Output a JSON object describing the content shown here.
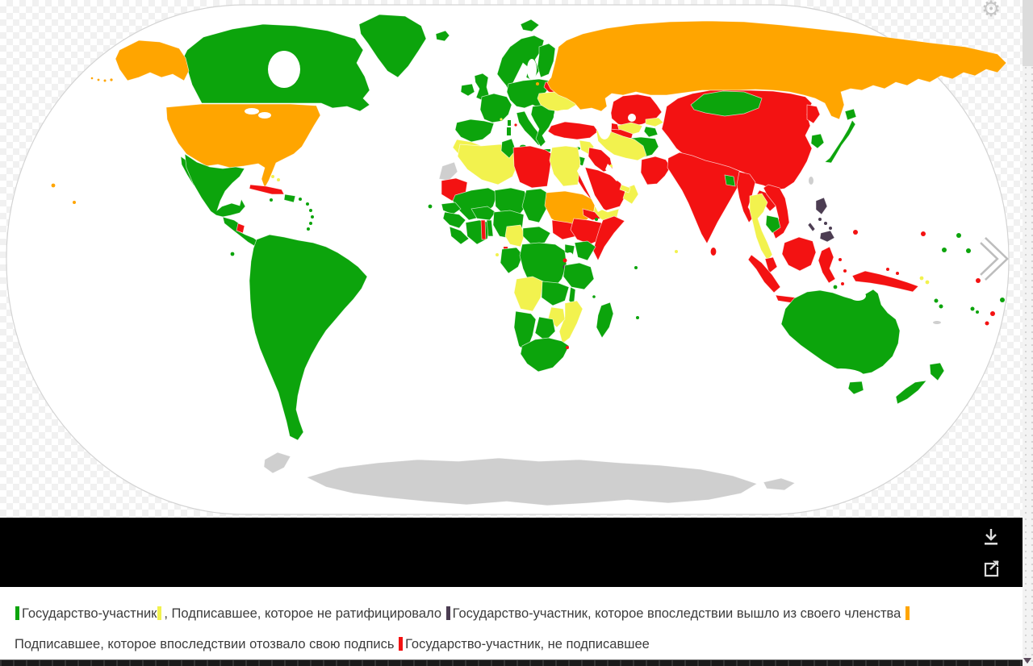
{
  "viewer": {
    "settings_icon": "gear-icon",
    "settings_glyph": "⚙",
    "next_icon": "chevron-right-icon",
    "download_icon": "download-icon",
    "share_icon": "share-icon",
    "scroll_down_icon": "triangle-down-icon"
  },
  "map": {
    "status_colors": {
      "state_party": "#0CA40C",
      "signatory": "#F2F24E",
      "withdrawn_party": "#4C3D52",
      "withdrawn_signatory": "#FFA500",
      "non_party": "#F31212",
      "no_data": "#CFCFCF"
    }
  },
  "legend": {
    "items": [
      {
        "key": "state-party",
        "color": "#0CA40C",
        "label": "Государство-участник"
      },
      {
        "key": "signatory-not-ratified",
        "color": "#F2F24E",
        "label": ", Подписавшее, которое не ратифицировало "
      },
      {
        "key": "party-withdrew-membership",
        "color": "#4C3D52",
        "label": "Государство-участник, которое впоследствии вышло из своего членства "
      },
      {
        "key": "signatory-withdrew-signature",
        "color": "#FFA500",
        "label": "Подписавшее, которое впоследствии отозвало свою подпись "
      },
      {
        "key": "non-signatory",
        "color": "#F31212",
        "label": "Государство-участник, не подписавшее"
      }
    ]
  }
}
